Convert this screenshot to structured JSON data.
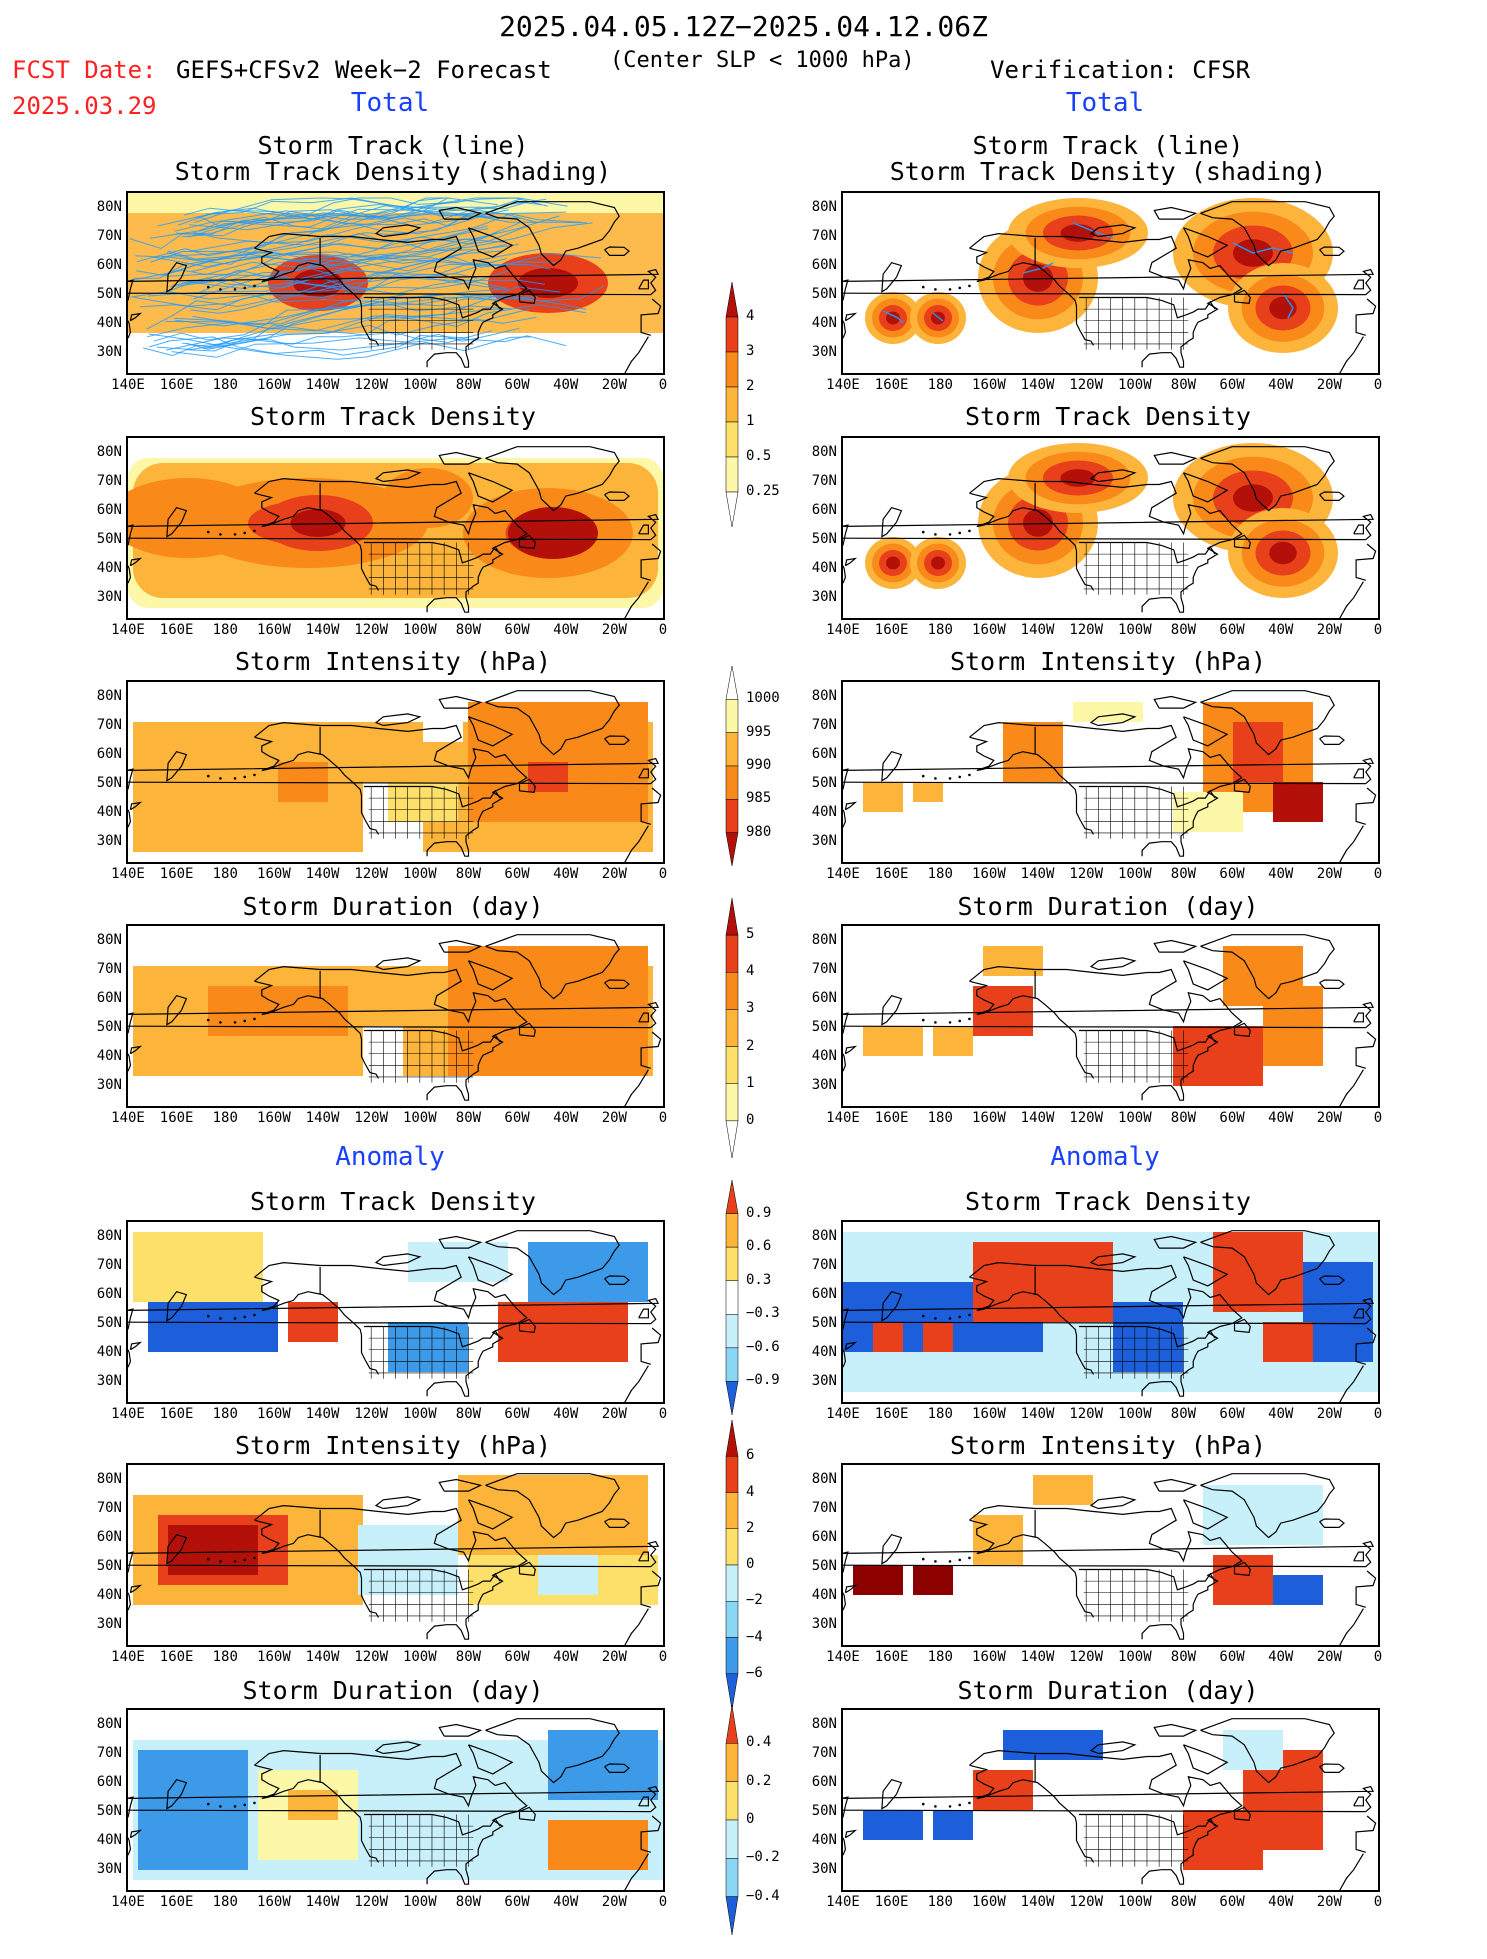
{
  "header": {
    "title": "2025.04.05.12Z−2025.04.12.06Z",
    "fcst_label": "FCST Date:",
    "fcst_date": "2025.03.29",
    "model": "GEFS+CFSv2 Week−2 Forecast",
    "criterion": "(Center SLP < 1000 hPa)",
    "verification": "Verification: CFSR"
  },
  "sections": {
    "total_left": "Total",
    "total_right": "Total",
    "anomaly_left": "Anomaly",
    "anomaly_right": "Anomaly"
  },
  "panel_titles": {
    "track_line": "Storm Track (line)",
    "track_density_shading": "Storm Track Density (shading)",
    "track_density": "Storm Track Density",
    "intensity": "Storm Intensity (hPa)",
    "duration": "Storm Duration (day)"
  },
  "axes": {
    "lat_labels": [
      "80N",
      "70N",
      "60N",
      "50N",
      "40N",
      "30N"
    ],
    "lon_labels": [
      "140E",
      "160E",
      "180",
      "160W",
      "140W",
      "120W",
      "100W",
      "80W",
      "60W",
      "40W",
      "20W",
      "0"
    ]
  },
  "colorbars": {
    "density_total": [
      "4",
      "3",
      "2",
      "1",
      "0.5",
      "0.25"
    ],
    "intensity_total": [
      "1000",
      "995",
      "990",
      "985",
      "980"
    ],
    "duration_total": [
      "5",
      "4",
      "3",
      "2",
      "1",
      "0"
    ],
    "density_anom": [
      "0.9",
      "0.6",
      "0.3",
      "−0.3",
      "−0.6",
      "−0.9"
    ],
    "intensity_anom": [
      "6",
      "4",
      "2",
      "0",
      "−2",
      "−4",
      "−6"
    ],
    "duration_anom": [
      "0.4",
      "0.2",
      "0",
      "−0.2",
      "−0.4"
    ]
  },
  "colors": {
    "red_label": "#ff2020",
    "blue_label": "#1a40ff",
    "track_line": "#1e9bff"
  }
}
